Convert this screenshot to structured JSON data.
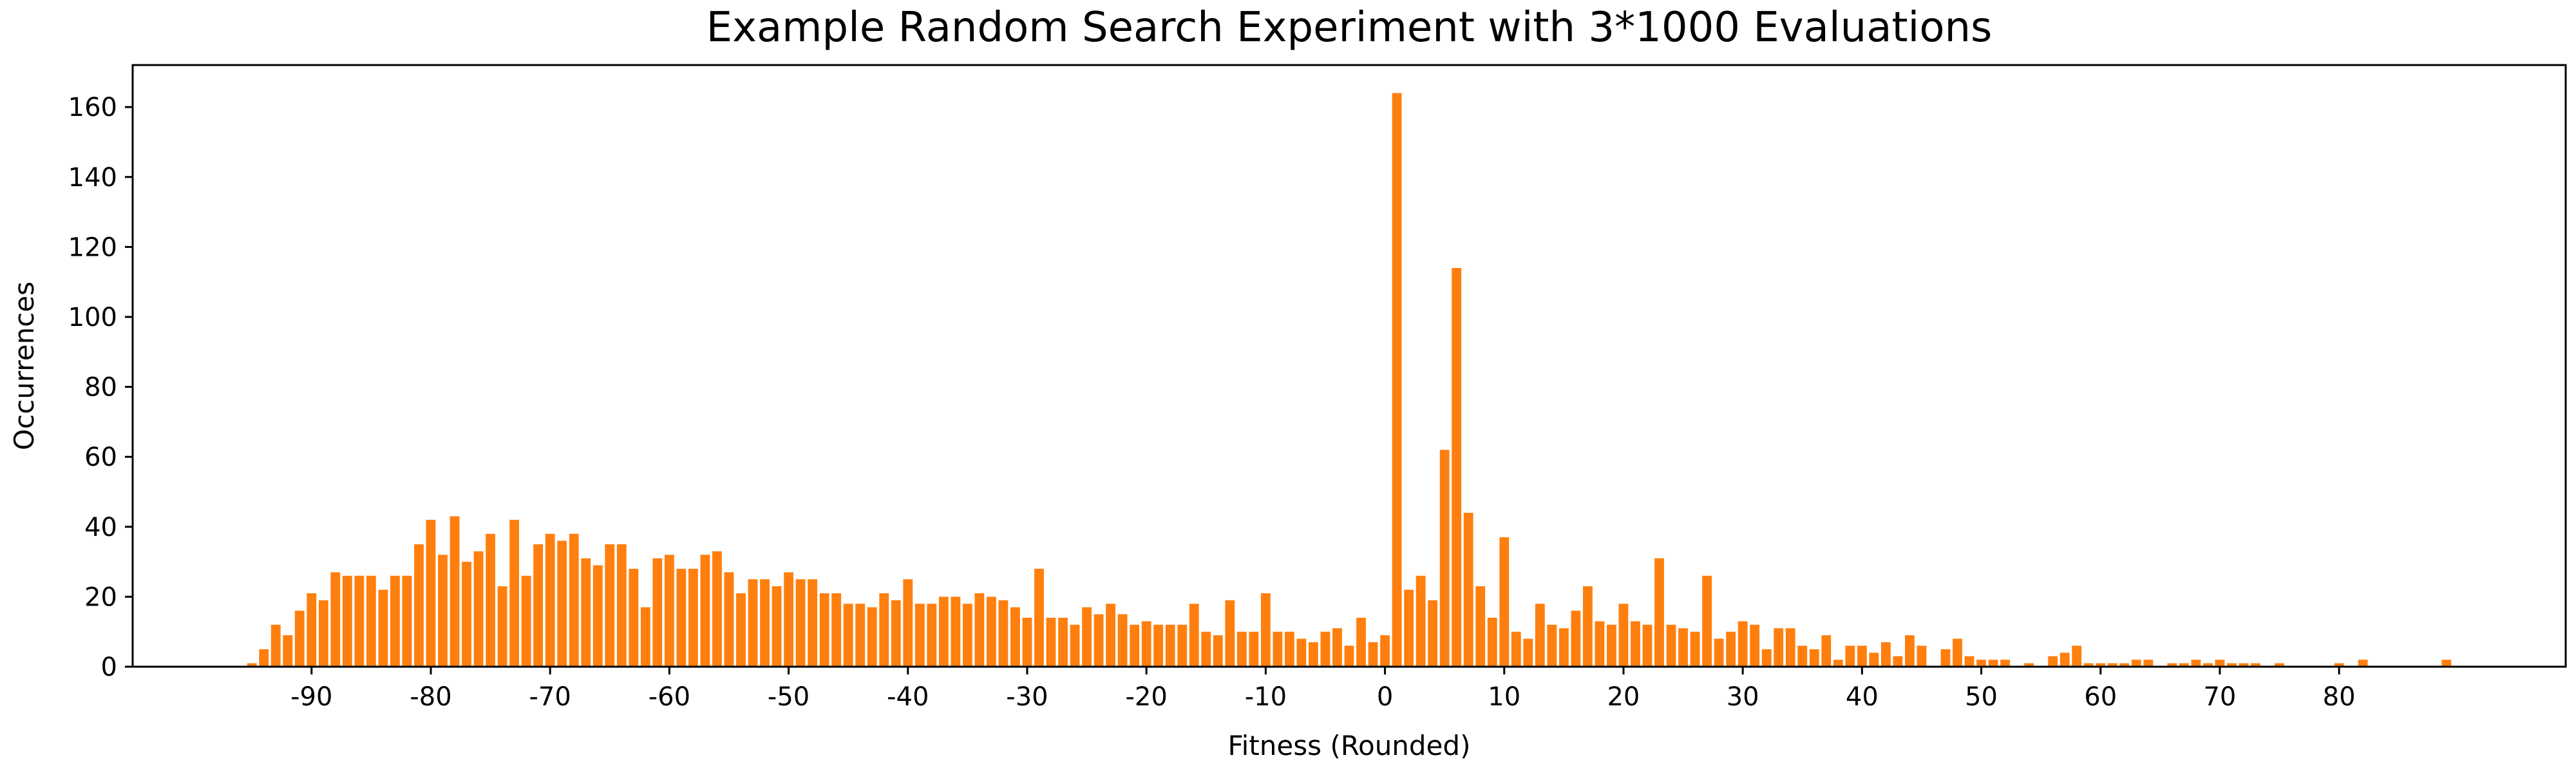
{
  "chart_data": {
    "type": "bar",
    "title": "Example Random Search Experiment with 3*1000 Evaluations",
    "xlabel": "Fitness (Rounded)",
    "ylabel": "Occurrences",
    "bar_color": "#ff7f0e",
    "xlim": [
      -105,
      99
    ],
    "ylim": [
      0,
      172
    ],
    "grid": false,
    "legend": "none",
    "xticks": [
      -90,
      -80,
      -70,
      -60,
      -50,
      -40,
      -30,
      -20,
      -10,
      0,
      10,
      20,
      30,
      40,
      50,
      60,
      70,
      80
    ],
    "yticks": [
      0,
      20,
      40,
      60,
      80,
      100,
      120,
      140,
      160
    ],
    "x": [
      -95,
      -94,
      -93,
      -92,
      -91,
      -90,
      -89,
      -88,
      -87,
      -86,
      -85,
      -84,
      -83,
      -82,
      -81,
      -80,
      -79,
      -78,
      -77,
      -76,
      -75,
      -74,
      -73,
      -72,
      -71,
      -70,
      -69,
      -68,
      -67,
      -66,
      -65,
      -64,
      -63,
      -62,
      -61,
      -60,
      -59,
      -58,
      -57,
      -56,
      -55,
      -54,
      -53,
      -52,
      -51,
      -50,
      -49,
      -48,
      -47,
      -46,
      -45,
      -44,
      -43,
      -42,
      -41,
      -40,
      -39,
      -38,
      -37,
      -36,
      -35,
      -34,
      -33,
      -32,
      -31,
      -30,
      -29,
      -28,
      -27,
      -26,
      -25,
      -24,
      -23,
      -22,
      -21,
      -20,
      -19,
      -18,
      -17,
      -16,
      -15,
      -14,
      -13,
      -12,
      -11,
      -10,
      -9,
      -8,
      -7,
      -6,
      -5,
      -4,
      -3,
      -2,
      -1,
      0,
      1,
      2,
      3,
      4,
      5,
      6,
      7,
      8,
      9,
      10,
      11,
      12,
      13,
      14,
      15,
      16,
      17,
      18,
      19,
      20,
      21,
      22,
      23,
      24,
      25,
      26,
      27,
      28,
      29,
      30,
      31,
      32,
      33,
      34,
      35,
      36,
      37,
      38,
      39,
      40,
      41,
      42,
      43,
      44,
      45,
      46,
      47,
      48,
      49,
      50,
      51,
      52,
      53,
      54,
      55,
      56,
      57,
      58,
      59,
      60,
      61,
      62,
      63,
      64,
      65,
      66,
      67,
      68,
      69,
      70,
      71,
      72,
      73,
      74,
      75,
      76,
      77,
      78,
      79,
      80,
      81,
      82,
      83,
      84,
      85,
      86,
      87,
      88,
      89
    ],
    "values": [
      1,
      5,
      12,
      9,
      16,
      21,
      19,
      27,
      26,
      26,
      26,
      22,
      26,
      26,
      35,
      42,
      32,
      43,
      30,
      33,
      38,
      23,
      42,
      26,
      35,
      38,
      36,
      38,
      31,
      29,
      35,
      35,
      28,
      17,
      31,
      32,
      28,
      28,
      32,
      33,
      27,
      21,
      25,
      25,
      23,
      27,
      25,
      25,
      21,
      21,
      18,
      18,
      17,
      21,
      19,
      25,
      18,
      18,
      20,
      20,
      18,
      21,
      20,
      19,
      17,
      14,
      28,
      14,
      14,
      12,
      17,
      15,
      18,
      15,
      12,
      13,
      12,
      12,
      12,
      18,
      10,
      9,
      19,
      10,
      10,
      21,
      10,
      10,
      8,
      7,
      10,
      11,
      6,
      14,
      7,
      9,
      164,
      22,
      26,
      19,
      62,
      114,
      44,
      23,
      14,
      37,
      10,
      8,
      18,
      12,
      11,
      16,
      23,
      13,
      12,
      18,
      13,
      12,
      31,
      12,
      11,
      10,
      26,
      8,
      10,
      13,
      12,
      5,
      11,
      11,
      6,
      5,
      9,
      2,
      6,
      6,
      4,
      7,
      3,
      9,
      6,
      0,
      5,
      8,
      3,
      2,
      2,
      2,
      0,
      1,
      0,
      3,
      4,
      6,
      1,
      1,
      1,
      1,
      2,
      2,
      0,
      1,
      1,
      2,
      1,
      2,
      1,
      1,
      1,
      0,
      1,
      0,
      0,
      0,
      0,
      1,
      0,
      2,
      0,
      0,
      0,
      0,
      0,
      0,
      2
    ]
  }
}
